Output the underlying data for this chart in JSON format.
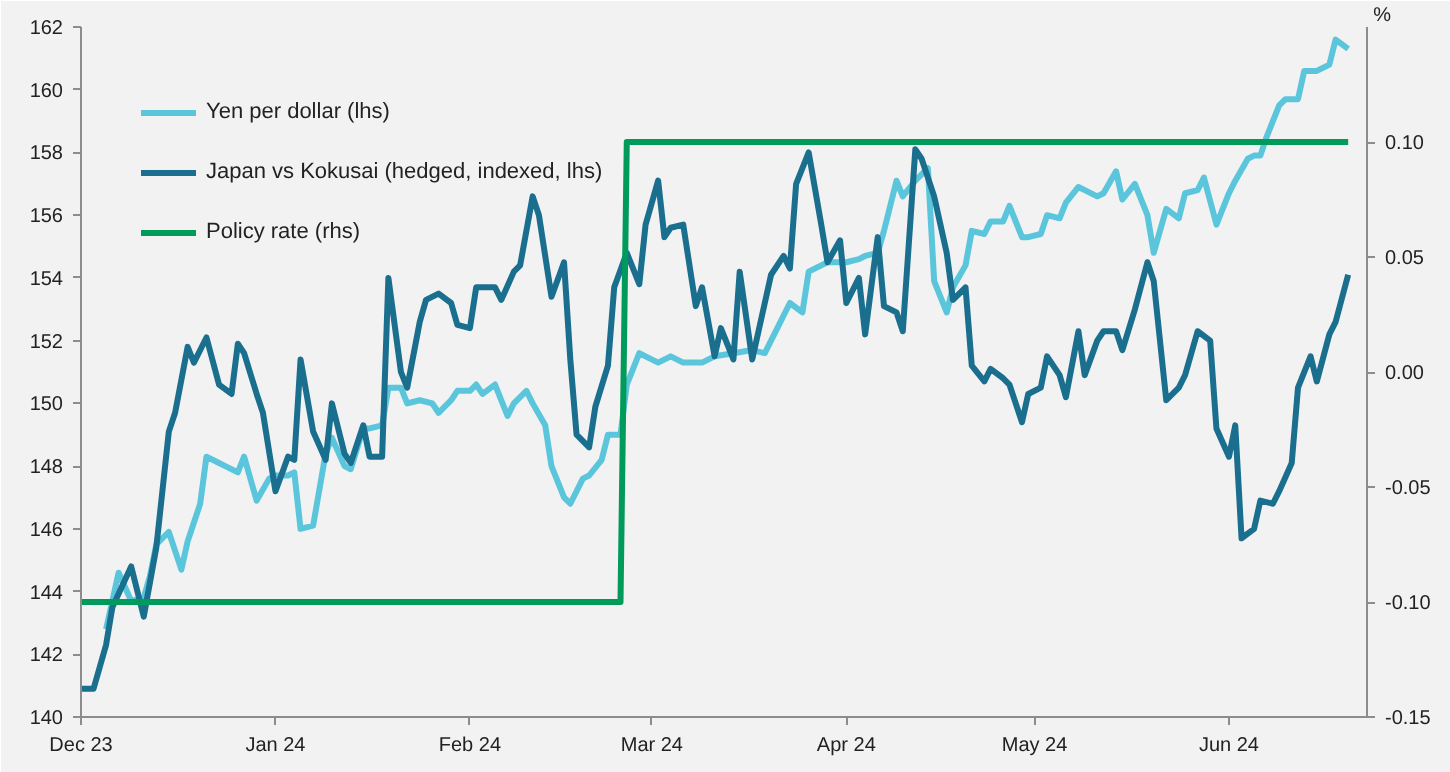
{
  "chart_data": {
    "type": "line",
    "y2label": "%",
    "legend": "top left",
    "grid": false,
    "marker": "none",
    "line_style": "solid",
    "xlim": [
      "2023-12-01",
      "2024-06-23"
    ],
    "xticks": [
      {
        "value": "2023-12-01",
        "label": "Dec 23"
      },
      {
        "value": "2024-01-01",
        "label": "Jan 24"
      },
      {
        "value": "2024-02-01",
        "label": "Feb 24"
      },
      {
        "value": "2024-03-01",
        "label": "Mar 24"
      },
      {
        "value": "2024-04-01",
        "label": "Apr 24"
      },
      {
        "value": "2024-05-01",
        "label": "May 24"
      },
      {
        "value": "2024-06-01",
        "label": "Jun 24"
      }
    ],
    "ylim": [
      140,
      162
    ],
    "yticks": [
      140,
      142,
      144,
      146,
      148,
      150,
      152,
      154,
      156,
      158,
      160,
      162
    ],
    "y2lim": [
      -0.15,
      0.15
    ],
    "y2ticks": [
      {
        "value": -0.15,
        "label": "-0.15"
      },
      {
        "value": -0.1,
        "label": "-0.10"
      },
      {
        "value": -0.05,
        "label": "-0.05"
      },
      {
        "value": 0,
        "label": "0.00"
      },
      {
        "value": 0.05,
        "label": "0.05"
      },
      {
        "value": 0.1,
        "label": "0.10"
      }
    ],
    "series": [
      {
        "name": "Yen per dollar (lhs)",
        "color": "#5bc5dc",
        "x": [
          "2023-12-05",
          "2023-12-07",
          "2023-12-09",
          "2023-12-11",
          "2023-12-12",
          "2023-12-13",
          "2023-12-15",
          "2023-12-17",
          "2023-12-18",
          "2023-12-20",
          "2023-12-21",
          "2023-12-23",
          "2023-12-24",
          "2023-12-26",
          "2023-12-27",
          "2023-12-29",
          "2023-12-31",
          "2024-01-01",
          "2024-01-03",
          "2024-01-04",
          "2024-01-05",
          "2024-01-07",
          "2024-01-09",
          "2024-01-10",
          "2024-01-12",
          "2024-01-13",
          "2024-01-15",
          "2024-01-16",
          "2024-01-18",
          "2024-01-19",
          "2024-01-21",
          "2024-01-22",
          "2024-01-24",
          "2024-01-26",
          "2024-01-27",
          "2024-01-29",
          "2024-01-30",
          "2024-02-01",
          "2024-02-02",
          "2024-02-03",
          "2024-02-05",
          "2024-02-07",
          "2024-02-08",
          "2024-02-10",
          "2024-02-11",
          "2024-02-13",
          "2024-02-14",
          "2024-02-16",
          "2024-02-17",
          "2024-02-19",
          "2024-02-20",
          "2024-02-22",
          "2024-02-23",
          "2024-02-25",
          "2024-02-26",
          "2024-02-28",
          "2024-02-29",
          "2024-03-02",
          "2024-03-04",
          "2024-03-06",
          "2024-03-09",
          "2024-03-11",
          "2024-03-14",
          "2024-03-17",
          "2024-03-19",
          "2024-03-21",
          "2024-03-23",
          "2024-03-25",
          "2024-03-26",
          "2024-03-28",
          "2024-03-29",
          "2024-04-01",
          "2024-04-03",
          "2024-04-04",
          "2024-04-06",
          "2024-04-07",
          "2024-04-09",
          "2024-04-10",
          "2024-04-12",
          "2024-04-14",
          "2024-04-15",
          "2024-04-17",
          "2024-04-18",
          "2024-04-20",
          "2024-04-21",
          "2024-04-23",
          "2024-04-24",
          "2024-04-26",
          "2024-04-27",
          "2024-04-29",
          "2024-04-30",
          "2024-05-02",
          "2024-05-03",
          "2024-05-05",
          "2024-05-06",
          "2024-05-08",
          "2024-05-09",
          "2024-05-11",
          "2024-05-12",
          "2024-05-14",
          "2024-05-15",
          "2024-05-17",
          "2024-05-19",
          "2024-05-20",
          "2024-05-22",
          "2024-05-24",
          "2024-05-25",
          "2024-05-27",
          "2024-05-28",
          "2024-05-30",
          "2024-06-01",
          "2024-06-02",
          "2024-06-04",
          "2024-06-05",
          "2024-06-06",
          "2024-06-07",
          "2024-06-09",
          "2024-06-10",
          "2024-06-12",
          "2024-06-13",
          "2024-06-15",
          "2024-06-17",
          "2024-06-18",
          "2024-06-20"
        ],
        "values": [
          142.8,
          144.6,
          143.7,
          143.8,
          144.5,
          145.5,
          145.9,
          144.7,
          145.6,
          146.8,
          148.3,
          148.1,
          148.0,
          147.8,
          148.3,
          146.9,
          147.6,
          147.7,
          147.7,
          147.8,
          146.0,
          146.1,
          148.4,
          148.9,
          148.0,
          147.9,
          149.2,
          149.2,
          149.3,
          150.5,
          150.5,
          150.0,
          150.1,
          150.0,
          149.7,
          150.1,
          150.4,
          150.4,
          150.6,
          150.3,
          150.6,
          149.6,
          150.0,
          150.4,
          150.0,
          149.3,
          148.0,
          147.0,
          146.8,
          147.6,
          147.7,
          148.2,
          149.0,
          149.0,
          150.6,
          151.6,
          151.5,
          151.3,
          151.5,
          151.3,
          151.3,
          151.5,
          151.6,
          151.7,
          151.6,
          152.4,
          153.2,
          152.9,
          154.2,
          154.4,
          154.5,
          154.5,
          154.6,
          154.7,
          154.8,
          155.5,
          157.1,
          156.6,
          157.1,
          157.5,
          153.9,
          152.9,
          153.7,
          154.4,
          155.5,
          155.4,
          155.8,
          155.8,
          156.3,
          155.3,
          155.3,
          155.4,
          156.0,
          155.9,
          156.4,
          156.9,
          156.8,
          156.6,
          156.7,
          157.4,
          156.5,
          157.0,
          156.0,
          154.8,
          156.2,
          155.9,
          156.7,
          156.8,
          157.2,
          155.7,
          156.7,
          157.1,
          157.8,
          157.9,
          157.9,
          158.5,
          159.5,
          159.7,
          159.7,
          160.6,
          160.6,
          160.8,
          161.6,
          161.3
        ]
      },
      {
        "name": "Japan vs Kokusai (hedged, indexed, lhs)",
        "color": "#1a6e8e",
        "x": [
          "2023-12-01",
          "2023-12-03",
          "2023-12-05",
          "2023-12-06",
          "2023-12-09",
          "2023-12-11",
          "2023-12-13",
          "2023-12-15",
          "2023-12-16",
          "2023-12-18",
          "2023-12-19",
          "2023-12-21",
          "2023-12-23",
          "2023-12-25",
          "2023-12-26",
          "2023-12-27",
          "2023-12-29",
          "2023-12-30",
          "2024-01-01",
          "2024-01-03",
          "2024-01-04",
          "2024-01-05",
          "2024-01-07",
          "2024-01-09",
          "2024-01-10",
          "2024-01-12",
          "2024-01-13",
          "2024-01-15",
          "2024-01-16",
          "2024-01-18",
          "2024-01-19",
          "2024-01-21",
          "2024-01-22",
          "2024-01-24",
          "2024-01-25",
          "2024-01-27",
          "2024-01-29",
          "2024-01-30",
          "2024-02-01",
          "2024-02-02",
          "2024-02-03",
          "2024-02-05",
          "2024-02-06",
          "2024-02-08",
          "2024-02-09",
          "2024-02-11",
          "2024-02-12",
          "2024-02-14",
          "2024-02-16",
          "2024-02-17",
          "2024-02-18",
          "2024-02-20",
          "2024-02-21",
          "2024-02-23",
          "2024-02-24",
          "2024-02-26",
          "2024-02-28",
          "2024-02-29",
          "2024-03-02",
          "2024-03-03",
          "2024-03-04",
          "2024-03-06",
          "2024-03-08",
          "2024-03-09",
          "2024-03-11",
          "2024-03-12",
          "2024-03-14",
          "2024-03-15",
          "2024-03-17",
          "2024-03-20",
          "2024-03-22",
          "2024-03-23",
          "2024-03-24",
          "2024-03-26",
          "2024-03-28",
          "2024-03-29",
          "2024-03-31",
          "2024-04-01",
          "2024-04-03",
          "2024-04-04",
          "2024-04-06",
          "2024-04-07",
          "2024-04-09",
          "2024-04-10",
          "2024-04-12",
          "2024-04-13",
          "2024-04-15",
          "2024-04-17",
          "2024-04-18",
          "2024-04-20",
          "2024-04-21",
          "2024-04-23",
          "2024-04-24",
          "2024-04-26",
          "2024-04-27",
          "2024-04-29",
          "2024-04-30",
          "2024-05-02",
          "2024-05-03",
          "2024-05-05",
          "2024-05-06",
          "2024-05-08",
          "2024-05-09",
          "2024-05-11",
          "2024-05-12",
          "2024-05-14",
          "2024-05-15",
          "2024-05-17",
          "2024-05-19",
          "2024-05-20",
          "2024-05-22",
          "2024-05-24",
          "2024-05-25",
          "2024-05-27",
          "2024-05-29",
          "2024-05-30",
          "2024-06-01",
          "2024-06-02",
          "2024-06-03",
          "2024-06-05",
          "2024-06-06",
          "2024-06-08",
          "2024-06-09",
          "2024-06-11",
          "2024-06-12",
          "2024-06-14",
          "2024-06-15",
          "2024-06-17",
          "2024-06-18",
          "2024-06-20"
        ],
        "values": [
          140.9,
          140.9,
          142.3,
          143.5,
          144.8,
          143.2,
          145.4,
          149.1,
          149.7,
          151.8,
          151.3,
          152.1,
          150.6,
          150.3,
          151.9,
          151.6,
          150.3,
          149.7,
          147.2,
          148.3,
          148.2,
          151.4,
          149.1,
          148.2,
          150.0,
          148.4,
          148.1,
          149.3,
          148.3,
          148.3,
          154.0,
          151.0,
          150.5,
          152.6,
          153.3,
          153.5,
          153.2,
          152.5,
          152.4,
          153.7,
          153.7,
          153.7,
          153.3,
          154.2,
          154.4,
          156.6,
          156.0,
          153.4,
          154.5,
          151.4,
          149.0,
          148.6,
          149.9,
          151.2,
          153.7,
          154.8,
          153.8,
          155.7,
          157.1,
          155.3,
          155.6,
          155.7,
          153.1,
          153.7,
          151.5,
          152.4,
          151.4,
          154.2,
          151.4,
          154.1,
          154.7,
          154.3,
          157.0,
          158.0,
          155.7,
          154.5,
          155.2,
          153.2,
          154.0,
          152.2,
          155.3,
          153.1,
          152.9,
          152.3,
          158.1,
          157.8,
          156.6,
          154.8,
          153.3,
          153.7,
          151.2,
          150.7,
          151.1,
          150.8,
          150.6,
          149.4,
          150.3,
          150.5,
          151.5,
          150.9,
          150.2,
          152.3,
          150.9,
          152.0,
          152.3,
          152.3,
          151.7,
          153.0,
          154.5,
          153.9,
          150.1,
          150.5,
          150.9,
          152.3,
          152.0,
          149.2,
          148.3,
          149.3,
          145.7,
          146.0,
          146.9,
          146.8,
          147.2,
          148.1,
          150.5,
          151.5,
          150.7,
          152.2,
          152.6,
          154.1
        ]
      },
      {
        "name": "Policy rate (rhs)",
        "color": "#009a5a",
        "axis": "y2",
        "x": [
          "2023-12-01",
          "2024-02-25",
          "2024-02-26",
          "2024-06-20"
        ],
        "values": [
          -0.1,
          -0.1,
          0.1,
          0.1
        ]
      }
    ]
  }
}
